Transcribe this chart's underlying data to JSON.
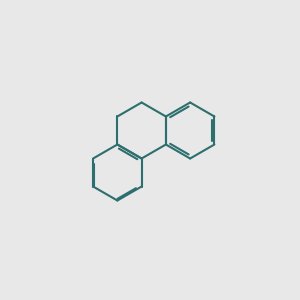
{
  "bg": "#e8e8e8",
  "bond_color": "#2d6e6e",
  "O_color": "#cc0000",
  "F_color": "#cc00cc",
  "Cl_color": "#00bb00",
  "bw": 1.5,
  "fs": 7.5,
  "fs_small": 7.0
}
